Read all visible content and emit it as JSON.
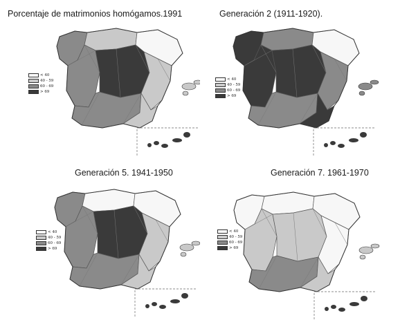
{
  "palette": {
    "c0": "#f7f7f7",
    "c1": "#c9c9c9",
    "c2": "#8a8a8a",
    "c3": "#3a3a3a"
  },
  "legend": [
    "< 40",
    "40 - 59",
    "60 - 69",
    "> 69"
  ],
  "panels": [
    {
      "title": "Porcentaje de matrimonios homógamos.1991",
      "fills": {
        "nw": 2,
        "north": 1,
        "ne": 0,
        "center": 3,
        "west": 2,
        "east": 1,
        "south": 2,
        "se": 1,
        "islands": 1
      }
    },
    {
      "title": "Generación 2 (1911-1920).",
      "fills": {
        "nw": 3,
        "north": 2,
        "ne": 0,
        "center": 3,
        "west": 3,
        "east": 2,
        "south": 2,
        "se": 3,
        "islands": 2
      }
    },
    {
      "title": "Generación 5. 1941-1950",
      "fills": {
        "nw": 2,
        "north": 0,
        "ne": 0,
        "center": 3,
        "west": 2,
        "east": 1,
        "south": 2,
        "se": 1,
        "islands": 1
      }
    },
    {
      "title": "Generación 7. 1961-1970",
      "fills": {
        "nw": 0,
        "north": 0,
        "ne": 0,
        "center": 1,
        "west": 1,
        "east": 0,
        "south": 2,
        "se": 1,
        "islands": 1
      }
    }
  ]
}
